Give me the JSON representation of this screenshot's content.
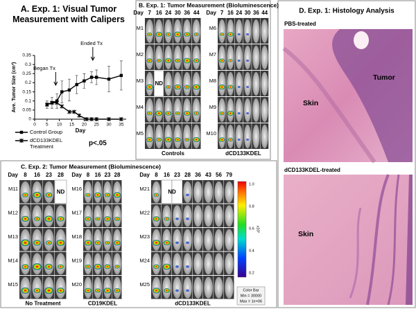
{
  "chart_data": {
    "type": "line",
    "title": "A.  Exp. 1: Visual Tumor Measurement with Calipers",
    "x_label": "Day",
    "y_label": "Ave. Tumor Size (cm³)",
    "xlim": [
      0,
      37
    ],
    "xticks": [
      0,
      5,
      10,
      15,
      20,
      25,
      30,
      35
    ],
    "ylim": [
      0,
      0.35
    ],
    "yticks": [
      0,
      0.05,
      0.1,
      0.15,
      0.2,
      0.25,
      0.3,
      0.35
    ],
    "series": [
      {
        "name": "Control Group",
        "color": "#000000",
        "marker": "square",
        "x": [
          5,
          7,
          9,
          11,
          14,
          17,
          20,
          23,
          25,
          30,
          35
        ],
        "values": [
          0.08,
          0.09,
          0.1,
          0.15,
          0.16,
          0.19,
          0.21,
          0.23,
          0.23,
          0.22,
          0.24
        ],
        "errors": [
          0.02,
          0.03,
          0.04,
          0.06,
          0.06,
          0.05,
          0.04,
          0.03,
          0.04,
          0.07,
          0.08
        ]
      },
      {
        "name": "dCD133KDEL Treatment",
        "color": "#000000",
        "marker": "x",
        "x": [
          5,
          7,
          9,
          11,
          14,
          16,
          18,
          21,
          23,
          25,
          30,
          35
        ],
        "values": [
          0.08,
          0.09,
          0.09,
          0.07,
          0.04,
          0.04,
          0.02,
          0.0,
          0.0,
          0.0,
          0.0,
          0.0
        ]
      }
    ],
    "annotations": [
      "Began Tx",
      "Ended Tx",
      "p<.05"
    ]
  },
  "panel_b": {
    "title": "B.  Exp. 1: Tumor Measurement (Bioluminescence)",
    "groups": [
      {
        "day_label": "Day",
        "days": [
          "7",
          "16",
          "24",
          "30",
          "36",
          "44"
        ],
        "rows": [
          "M1",
          "M2",
          "M3",
          "M4",
          "M5"
        ],
        "label": "Controls",
        "nd": "ND"
      },
      {
        "day_label": "Day",
        "days": [
          "7",
          "16",
          "24",
          "30",
          "36",
          "44"
        ],
        "rows": [
          "M6",
          "M7",
          "M8",
          "M9",
          "M10"
        ],
        "label": "dCD133KDEL"
      }
    ]
  },
  "panel_c": {
    "title": "C.  Exp. 2: Tumor Measurement (Bioluminescence)",
    "groups": [
      {
        "day_label": "Day",
        "days": [
          "8",
          "16",
          "23",
          "28"
        ],
        "rows": [
          "M11",
          "M12",
          "M13",
          "M14",
          "M15"
        ],
        "label": "No Treatment",
        "nd": "ND"
      },
      {
        "day_label": "Day",
        "days": [
          "8",
          "16",
          "23",
          "28"
        ],
        "rows": [
          "M16",
          "M17",
          "M18",
          "M19",
          "M20"
        ],
        "label": "CD19KDEL"
      },
      {
        "day_label": "Day",
        "days": [
          "8",
          "16",
          "23",
          "28",
          "36",
          "43",
          "56",
          "79"
        ],
        "rows": [
          "M21",
          "M22",
          "M23",
          "M24",
          "M25"
        ],
        "label": "dCD133KDEL",
        "nd": "ND"
      }
    ],
    "colorbar": {
      "ticks": [
        "1.0",
        "0.8",
        "0.6",
        "0.4",
        "0.2"
      ],
      "unit": "x10⁶",
      "legend": [
        "Color Bar",
        "Min = 30000",
        "Max = 1e+06"
      ]
    }
  },
  "panel_d": {
    "title": "D.  Exp. 1: Histology Analysis",
    "images": [
      {
        "caption": "PBS-treated",
        "labels": [
          "Tumor",
          "Skin"
        ]
      },
      {
        "caption": "dCD133KDEL-treated",
        "labels": [
          "Skin"
        ]
      }
    ]
  }
}
